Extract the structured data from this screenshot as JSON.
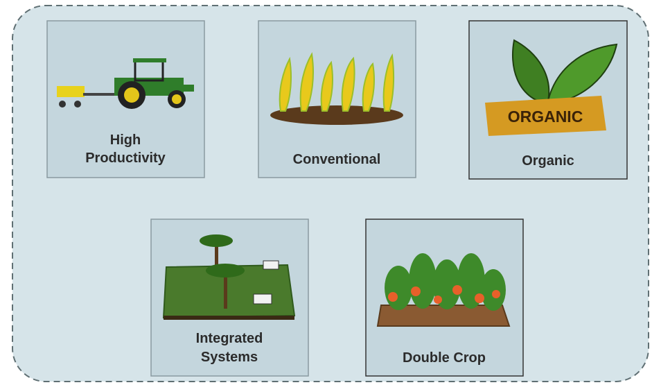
{
  "tiles": [
    {
      "label": [
        "High",
        "Productivity"
      ]
    },
    {
      "label": [
        "Conventional"
      ]
    },
    {
      "label": [
        "Organic"
      ],
      "sign": "ORGANIC"
    },
    {
      "label": [
        "Integrated",
        "Systems"
      ]
    },
    {
      "label": [
        "Double Crop"
      ]
    }
  ]
}
